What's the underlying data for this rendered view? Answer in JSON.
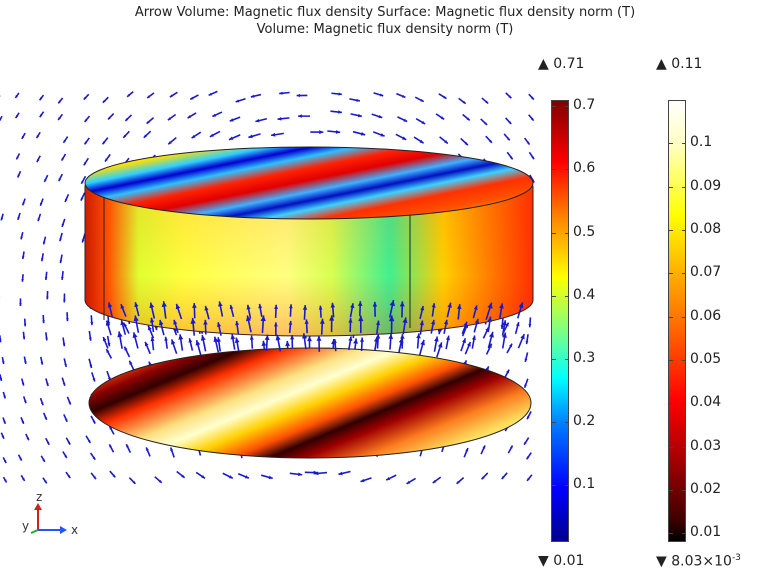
{
  "title": {
    "line1": "Arrow Volume: Magnetic flux density  Surface: Magnetic flux density norm (T)",
    "line2": "Volume: Magnetic flux density norm (T)"
  },
  "colorbar_left": {
    "max_label": "0.71",
    "min_label": "0.01",
    "ticks": [
      "0.7",
      "0.6",
      "0.5",
      "0.4",
      "0.3",
      "0.2",
      "0.1"
    ],
    "tick_values": [
      0.7,
      0.6,
      0.5,
      0.4,
      0.3,
      0.2,
      0.1
    ],
    "range": [
      0.01,
      0.71
    ]
  },
  "colorbar_right": {
    "max_label": "0.11",
    "min_label": "8.03×10",
    "min_exponent": "-3",
    "ticks": [
      "0.1",
      "0.09",
      "0.08",
      "0.07",
      "0.06",
      "0.05",
      "0.04",
      "0.03",
      "0.02",
      "0.01"
    ],
    "tick_values": [
      0.1,
      0.09,
      0.08,
      0.07,
      0.06,
      0.05,
      0.04,
      0.03,
      0.02,
      0.01
    ],
    "range": [
      0.00803,
      0.11
    ]
  },
  "axes_triad": {
    "x": "x",
    "y": "y",
    "z": "z"
  },
  "colors": {
    "arrow": "#1a1acc",
    "triad_x": "#2255ff",
    "triad_y": "#22aa22",
    "triad_z": "#cc2222"
  }
}
